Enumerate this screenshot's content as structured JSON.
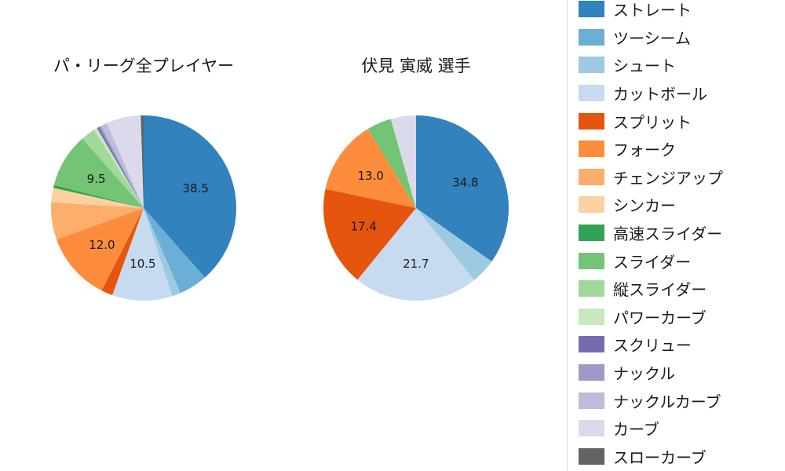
{
  "legend": {
    "items": [
      {
        "label": "ストレート",
        "color": "#3182bd"
      },
      {
        "label": "ツーシーム",
        "color": "#6baed6"
      },
      {
        "label": "シュート",
        "color": "#9ecae1"
      },
      {
        "label": "カットボール",
        "color": "#c6dbef"
      },
      {
        "label": "スプリット",
        "color": "#e6550d"
      },
      {
        "label": "フォーク",
        "color": "#fd8d3c"
      },
      {
        "label": "チェンジアップ",
        "color": "#fdae6b"
      },
      {
        "label": "シンカー",
        "color": "#fdd0a2"
      },
      {
        "label": "高速スライダー",
        "color": "#31a354"
      },
      {
        "label": "スライダー",
        "color": "#74c476"
      },
      {
        "label": "縦スライダー",
        "color": "#a1d99b"
      },
      {
        "label": "パワーカーブ",
        "color": "#c7e9c0"
      },
      {
        "label": "スクリュー",
        "color": "#756bb1"
      },
      {
        "label": "ナックル",
        "color": "#9e9ac8"
      },
      {
        "label": "ナックルカーブ",
        "color": "#bcbddc"
      },
      {
        "label": "カーブ",
        "color": "#dadaeb"
      },
      {
        "label": "スローカーブ",
        "color": "#636363"
      }
    ]
  },
  "chart_data": [
    {
      "type": "pie",
      "title": "パ・リーグ全プレイヤー",
      "start_angle": "top",
      "direction": "clockwise",
      "labeled_values_visible": [
        38.5,
        10.5,
        12.0,
        9.5
      ],
      "slices": [
        {
          "label": "ストレート",
          "value": 38.5,
          "color": "#3182bd",
          "show_label": true
        },
        {
          "label": "ツーシーム",
          "value": 5.0,
          "color": "#6baed6",
          "show_label": false
        },
        {
          "label": "シュート",
          "value": 1.5,
          "color": "#9ecae1",
          "show_label": false
        },
        {
          "label": "カットボール",
          "value": 10.5,
          "color": "#c6dbef",
          "show_label": true
        },
        {
          "label": "スプリット",
          "value": 2.0,
          "color": "#e6550d",
          "show_label": false
        },
        {
          "label": "フォーク",
          "value": 12.0,
          "color": "#fd8d3c",
          "show_label": true
        },
        {
          "label": "チェンジアップ",
          "value": 6.5,
          "color": "#fdae6b",
          "show_label": false
        },
        {
          "label": "シンカー",
          "value": 2.5,
          "color": "#fdd0a2",
          "show_label": false
        },
        {
          "label": "高速スライダー",
          "value": 0.5,
          "color": "#31a354",
          "show_label": false
        },
        {
          "label": "スライダー",
          "value": 9.5,
          "color": "#74c476",
          "show_label": true
        },
        {
          "label": "縦スライダー",
          "value": 2.5,
          "color": "#a1d99b",
          "show_label": false
        },
        {
          "label": "パワーカーブ",
          "value": 0.6,
          "color": "#c7e9c0",
          "show_label": false
        },
        {
          "label": "スクリュー",
          "value": 0.4,
          "color": "#756bb1",
          "show_label": false
        },
        {
          "label": "ナックル",
          "value": 0.4,
          "color": "#9e9ac8",
          "show_label": false
        },
        {
          "label": "ナックルカーブ",
          "value": 1.1,
          "color": "#bcbddc",
          "show_label": false
        },
        {
          "label": "カーブ",
          "value": 6.0,
          "color": "#dadaeb",
          "show_label": false
        },
        {
          "label": "スローカーブ",
          "value": 0.5,
          "color": "#636363",
          "show_label": false
        }
      ]
    },
    {
      "type": "pie",
      "title": "伏見 寅威 選手",
      "start_angle": "top",
      "direction": "clockwise",
      "labeled_values_visible": [
        34.8,
        21.7,
        17.4,
        13.0
      ],
      "slices": [
        {
          "label": "ストレート",
          "value": 34.8,
          "color": "#3182bd",
          "show_label": true
        },
        {
          "label": "シュート",
          "value": 4.4,
          "color": "#9ecae1",
          "show_label": false
        },
        {
          "label": "カットボール",
          "value": 21.7,
          "color": "#c6dbef",
          "show_label": true
        },
        {
          "label": "スプリット",
          "value": 17.4,
          "color": "#e6550d",
          "show_label": true
        },
        {
          "label": "フォーク",
          "value": 13.0,
          "color": "#fd8d3c",
          "show_label": true
        },
        {
          "label": "スライダー",
          "value": 4.3,
          "color": "#74c476",
          "show_label": false
        },
        {
          "label": "カーブ",
          "value": 4.4,
          "color": "#dadaeb",
          "show_label": false
        }
      ]
    }
  ]
}
